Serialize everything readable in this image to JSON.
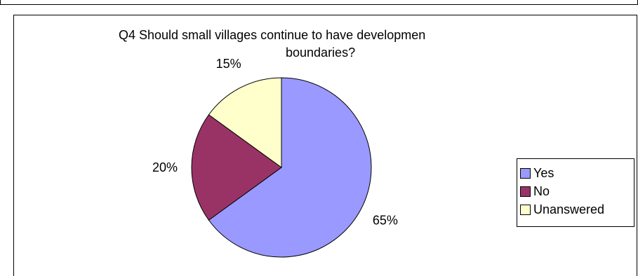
{
  "chart_data": {
    "type": "pie",
    "title_lines": [
      "Q4 Should small villages continue to have developmen",
      "boundaries?"
    ],
    "categories": [
      "Yes",
      "No",
      "Unanswered"
    ],
    "values": [
      65,
      20,
      15
    ],
    "value_labels": [
      "65%",
      "20%",
      "15%"
    ],
    "colors": [
      "#9999ff",
      "#993366",
      "#ffffcc"
    ],
    "legend_position": "right"
  }
}
